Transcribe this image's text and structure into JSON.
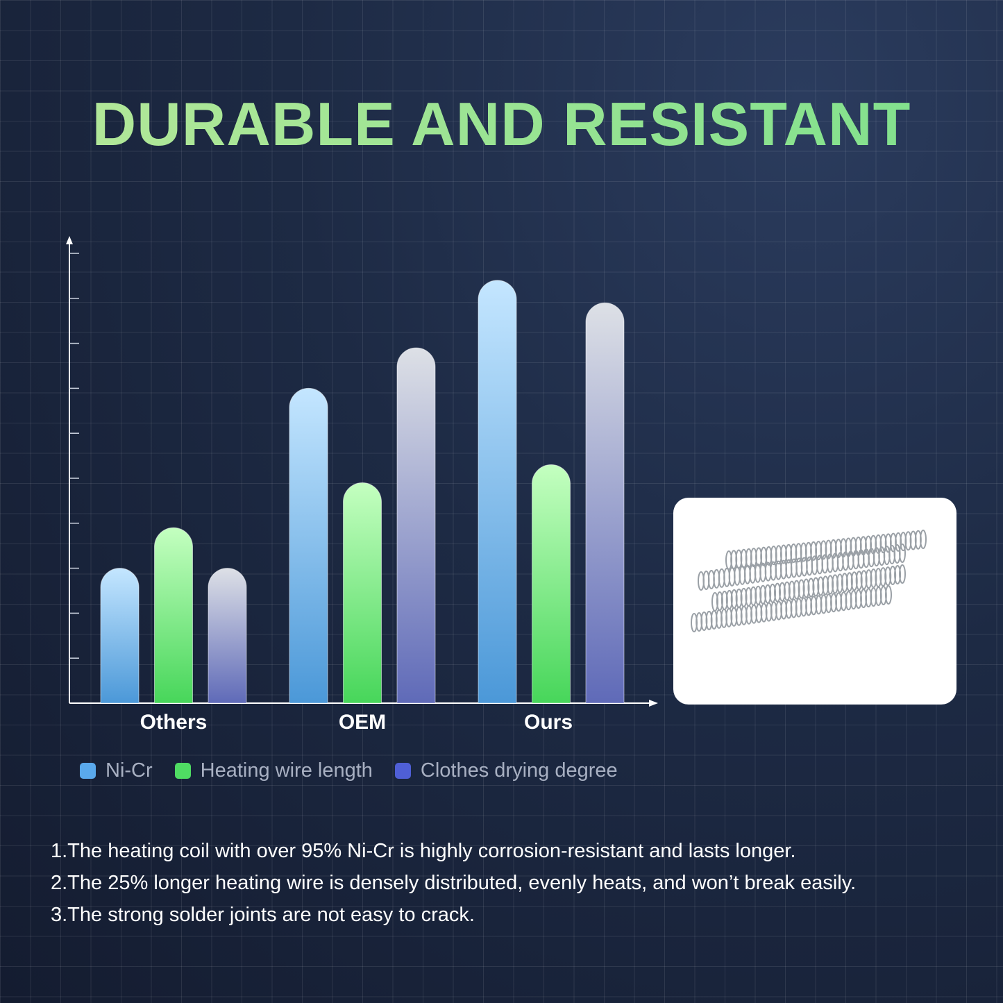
{
  "title": "DURABLE AND RESISTANT",
  "chart_data": {
    "type": "bar",
    "categories": [
      "Others",
      "OEM",
      "Ours"
    ],
    "series": [
      {
        "name": "Ni-Cr",
        "values": [
          3,
          7,
          9.4
        ],
        "color": "#5aa9ec"
      },
      {
        "name": "Heating wire length",
        "values": [
          3.9,
          4.9,
          5.3
        ],
        "color": "#4fdc63"
      },
      {
        "name": "Clothes drying degree",
        "values": [
          3,
          7.9,
          8.9
        ],
        "color": "#4f5fd6"
      }
    ],
    "ylim": [
      0,
      10.5
    ],
    "y_ticks": [
      1,
      2,
      3,
      4,
      5,
      6,
      7,
      8,
      9,
      10
    ],
    "tick_labels_shown": false,
    "grid": true,
    "legend": "bottom"
  },
  "legend_labels": [
    "Ni-Cr",
    "Heating wire length",
    "Clothes drying degree"
  ],
  "product_image": "heating-coil-element",
  "notes": [
    "1.The heating coil with over 95% Ni-Cr is highly corrosion-resistant and lasts longer.",
    "2.The 25% longer heating wire is densely distributed, evenly heats, and won’t break easily.",
    "3.The strong solder joints are not easy to crack."
  ]
}
